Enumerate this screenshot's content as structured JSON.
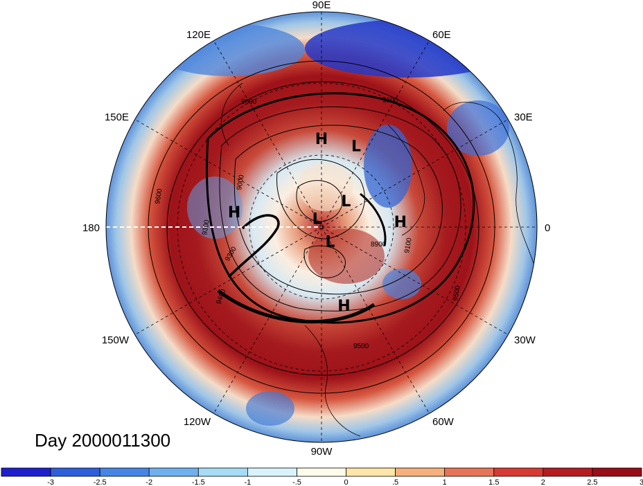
{
  "day_label": "Day 2000011300",
  "lon_labels": [
    "90E",
    "60E",
    "30E",
    "0",
    "30W",
    "60W",
    "90W",
    "120W",
    "150W",
    "180",
    "150E",
    "120E"
  ],
  "pressure_marks": [
    {
      "label": "H",
      "lon": 90,
      "colat": 37
    },
    {
      "label": "L",
      "lon": 67,
      "colat": 37
    },
    {
      "label": "H",
      "lon": 170,
      "colat": 37
    },
    {
      "label": "L",
      "lon": 47,
      "colat": 15
    },
    {
      "label": "H",
      "lon": 4,
      "colat": 33
    },
    {
      "label": "L",
      "lon": 117,
      "colat": 4
    },
    {
      "label": "L",
      "lon": -59,
      "colat": 7
    },
    {
      "label": "H",
      "lon": -74,
      "colat": 34
    }
  ],
  "contour_levels": [
    "9600",
    "9600",
    "9600",
    "9500",
    "9500",
    "9400",
    "9300",
    "9300",
    "9000",
    "8900",
    "9100"
  ],
  "colorbar": {
    "ticks": [
      "-3",
      "-2.5",
      "-2",
      "-1.5",
      "-1",
      "-.5",
      "0",
      ".5",
      "1",
      "1.5",
      "2",
      "2.5",
      "3"
    ],
    "colors": [
      "#1f1fce",
      "#2d5fdc",
      "#4585e6",
      "#6fb0ef",
      "#a6dcf5",
      "#d9f3fb",
      "#fffbea",
      "#fde6a8",
      "#f6b07b",
      "#e77456",
      "#d73a32",
      "#b51b20",
      "#980d16"
    ]
  }
}
